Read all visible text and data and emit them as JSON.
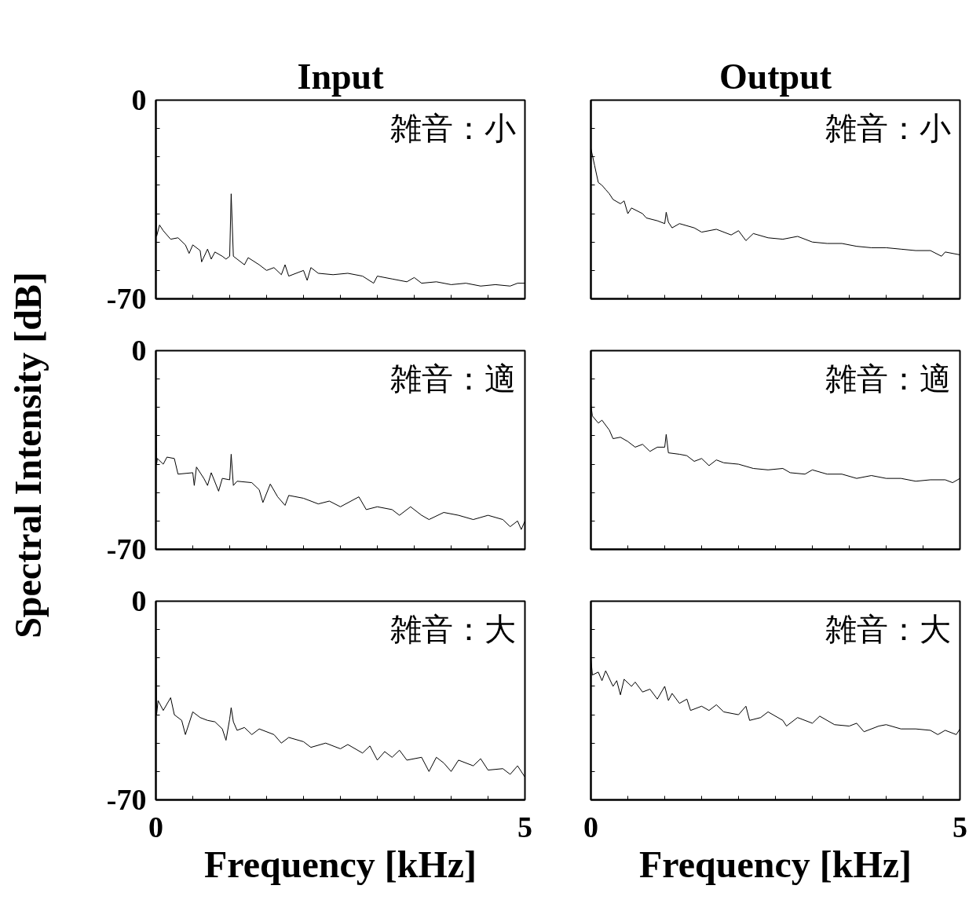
{
  "chart_data": [
    {
      "type": "line",
      "title": "Input",
      "annotations": [
        "雑音：小"
      ],
      "tick_labels": "y",
      "xlim": [
        0,
        5
      ],
      "ylim": [
        -70,
        0
      ],
      "xticks": [
        {
          "value": 0,
          "label": null
        },
        {
          "value": 0.5,
          "label": null
        },
        {
          "value": 1,
          "label": null
        },
        {
          "value": 1.5,
          "label": null
        },
        {
          "value": 2,
          "label": null
        },
        {
          "value": 2.5,
          "label": null
        },
        {
          "value": 3,
          "label": null
        },
        {
          "value": 3.5,
          "label": null
        },
        {
          "value": 4,
          "label": null
        },
        {
          "value": 4.5,
          "label": null
        },
        {
          "value": 5,
          "label": null
        }
      ],
      "yticks": [
        -70,
        {
          "value": -60,
          "label": null
        },
        {
          "value": -50,
          "label": null
        },
        {
          "value": -40,
          "label": null
        },
        {
          "value": -30,
          "label": null
        },
        {
          "value": -20,
          "label": null
        },
        {
          "value": -10,
          "label": null
        },
        0
      ],
      "series": [
        {
          "color": "#000000",
          "x": [
            0,
            0.01,
            0.05,
            0.1,
            0.2,
            0.3,
            0.4,
            0.45,
            0.5,
            0.6,
            0.62,
            0.7,
            0.75,
            0.8,
            0.9,
            0.95,
            1.0,
            1.02,
            1.05,
            1.1,
            1.2,
            1.25,
            1.4,
            1.5,
            1.6,
            1.7,
            1.75,
            1.8,
            2.0,
            2.05,
            2.1,
            2.2,
            2.4,
            2.6,
            2.8,
            2.95,
            3.0,
            3.2,
            3.4,
            3.5,
            3.6,
            3.8,
            4.0,
            4.2,
            4.4,
            4.6,
            4.8,
            4.9,
            5.0
          ],
          "values": [
            -10,
            -48,
            -44,
            -46,
            -49,
            -48.5,
            -51,
            -54,
            -51,
            -53,
            -57,
            -52.5,
            -56,
            -53.5,
            -55,
            -56,
            -55,
            -33,
            -55,
            -56,
            -58,
            -55.5,
            -58,
            -60,
            -59,
            -61.5,
            -58,
            -62,
            -60,
            -63.5,
            -59,
            -61,
            -61.5,
            -61,
            -62,
            -64.5,
            -62,
            -63,
            -64,
            -62.5,
            -64.5,
            -64,
            -65,
            -64.5,
            -65.5,
            -65,
            -65.5,
            -64.5,
            -64.5
          ]
        }
      ]
    },
    {
      "type": "line",
      "title": "Output",
      "annotations": [
        "雑音：小"
      ],
      "tick_labels": false,
      "xlim": [
        0,
        5
      ],
      "ylim": [
        -70,
        0
      ],
      "xticks": [
        {
          "value": 0,
          "label": null
        },
        {
          "value": 0.5,
          "label": null
        },
        {
          "value": 1,
          "label": null
        },
        {
          "value": 1.5,
          "label": null
        },
        {
          "value": 2,
          "label": null
        },
        {
          "value": 2.5,
          "label": null
        },
        {
          "value": 3,
          "label": null
        },
        {
          "value": 3.5,
          "label": null
        },
        {
          "value": 4,
          "label": null
        },
        {
          "value": 4.5,
          "label": null
        },
        {
          "value": 5,
          "label": null
        }
      ],
      "yticks": [
        {
          "value": -70,
          "label": null
        },
        {
          "value": -60,
          "label": null
        },
        {
          "value": -50,
          "label": null
        },
        {
          "value": -40,
          "label": null
        },
        {
          "value": -30,
          "label": null
        },
        {
          "value": -20,
          "label": null
        },
        {
          "value": -10,
          "label": null
        },
        {
          "value": 0,
          "label": null
        }
      ],
      "series": [
        {
          "color": "#000000",
          "x": [
            0,
            0.05,
            0.1,
            0.15,
            0.2,
            0.25,
            0.3,
            0.4,
            0.45,
            0.5,
            0.55,
            0.7,
            0.75,
            0.9,
            1.0,
            1.02,
            1.05,
            1.1,
            1.2,
            1.4,
            1.5,
            1.7,
            1.9,
            2.0,
            2.1,
            2.2,
            2.4,
            2.6,
            2.8,
            3.0,
            3.2,
            3.4,
            3.6,
            3.8,
            4.0,
            4.2,
            4.4,
            4.6,
            4.75,
            4.8,
            5.0
          ],
          "values": [
            -17,
            -23,
            -29,
            -30,
            -31.5,
            -33,
            -35,
            -36.5,
            -35.5,
            -40,
            -38,
            -40,
            -41.5,
            -42.5,
            -43.5,
            -39.5,
            -43,
            -45,
            -43.5,
            -45,
            -46.5,
            -45.5,
            -47.5,
            -46,
            -49.5,
            -47,
            -48.5,
            -49,
            -48,
            -50,
            -50.5,
            -50.5,
            -51.5,
            -52,
            -52,
            -52.5,
            -53,
            -53,
            -55,
            -53.5,
            -54.5
          ]
        }
      ]
    },
    {
      "type": "line",
      "ylabel": "Spectral Intensity [dB]",
      "annotations": [
        "雑音：適"
      ],
      "tick_labels": "y",
      "xlim": [
        0,
        5
      ],
      "ylim": [
        -70,
        0
      ],
      "xticks": [
        {
          "value": 0,
          "label": null
        },
        {
          "value": 0.5,
          "label": null
        },
        {
          "value": 1,
          "label": null
        },
        {
          "value": 1.5,
          "label": null
        },
        {
          "value": 2,
          "label": null
        },
        {
          "value": 2.5,
          "label": null
        },
        {
          "value": 3,
          "label": null
        },
        {
          "value": 3.5,
          "label": null
        },
        {
          "value": 4,
          "label": null
        },
        {
          "value": 4.5,
          "label": null
        },
        {
          "value": 5,
          "label": null
        }
      ],
      "yticks": [
        -70,
        {
          "value": -60,
          "label": null
        },
        {
          "value": -50,
          "label": null
        },
        {
          "value": -40,
          "label": null
        },
        {
          "value": -30,
          "label": null
        },
        {
          "value": -20,
          "label": null
        },
        {
          "value": -10,
          "label": null
        },
        0
      ],
      "series": [
        {
          "color": "#000000",
          "x": [
            0,
            0.01,
            0.02,
            0.1,
            0.15,
            0.25,
            0.3,
            0.5,
            0.52,
            0.55,
            0.65,
            0.7,
            0.75,
            0.85,
            0.9,
            1.0,
            1.02,
            1.05,
            1.1,
            1.3,
            1.4,
            1.45,
            1.55,
            1.65,
            1.75,
            1.8,
            2.0,
            2.2,
            2.35,
            2.5,
            2.75,
            2.85,
            3.0,
            3.2,
            3.3,
            3.45,
            3.6,
            3.7,
            3.9,
            4.1,
            4.3,
            4.5,
            4.7,
            4.8,
            4.9,
            4.95,
            5.0
          ],
          "values": [
            -10,
            -40,
            -38,
            -40,
            -37.5,
            -38,
            -43.5,
            -43,
            -47.5,
            -41,
            -45,
            -47.5,
            -43,
            -49.5,
            -45,
            -45.5,
            -36.5,
            -47.5,
            -46,
            -46.5,
            -49,
            -53.5,
            -47,
            -51.5,
            -54.5,
            -51,
            -52,
            -54,
            -53,
            -55,
            -51.5,
            -56,
            -55,
            -56,
            -58,
            -55,
            -58,
            -59.5,
            -57,
            -58,
            -59.5,
            -58,
            -59.5,
            -62,
            -60,
            -63,
            -60
          ]
        }
      ]
    },
    {
      "type": "line",
      "annotations": [
        "雑音：適"
      ],
      "tick_labels": false,
      "xlim": [
        0,
        5
      ],
      "ylim": [
        -70,
        0
      ],
      "xticks": [
        {
          "value": 0,
          "label": null
        },
        {
          "value": 0.5,
          "label": null
        },
        {
          "value": 1,
          "label": null
        },
        {
          "value": 1.5,
          "label": null
        },
        {
          "value": 2,
          "label": null
        },
        {
          "value": 2.5,
          "label": null
        },
        {
          "value": 3,
          "label": null
        },
        {
          "value": 3.5,
          "label": null
        },
        {
          "value": 4,
          "label": null
        },
        {
          "value": 4.5,
          "label": null
        },
        {
          "value": 5,
          "label": null
        }
      ],
      "yticks": [
        {
          "value": -70,
          "label": null
        },
        {
          "value": -60,
          "label": null
        },
        {
          "value": -50,
          "label": null
        },
        {
          "value": -40,
          "label": null
        },
        {
          "value": -30,
          "label": null
        },
        {
          "value": -20,
          "label": null
        },
        {
          "value": -10,
          "label": null
        },
        {
          "value": 0,
          "label": null
        }
      ],
      "series": [
        {
          "color": "#000000",
          "x": [
            0,
            0.02,
            0.1,
            0.15,
            0.25,
            0.3,
            0.4,
            0.5,
            0.6,
            0.7,
            0.8,
            0.9,
            1.0,
            1.02,
            1.05,
            1.2,
            1.3,
            1.4,
            1.5,
            1.6,
            1.7,
            1.8,
            2.0,
            2.2,
            2.4,
            2.6,
            2.7,
            2.9,
            3.0,
            3.2,
            3.4,
            3.6,
            3.8,
            4.0,
            4.2,
            4.4,
            4.6,
            4.8,
            4.9,
            5.0
          ],
          "values": [
            -19,
            -23,
            -25.5,
            -24.5,
            -28,
            -31,
            -30.5,
            -32,
            -34,
            -33,
            -35.5,
            -34,
            -34,
            -29.5,
            -36,
            -36.5,
            -37,
            -39,
            -38,
            -40.5,
            -38.5,
            -39.5,
            -40,
            -41.5,
            -42,
            -41.5,
            -43,
            -43.5,
            -42,
            -43.5,
            -43.5,
            -45,
            -44,
            -45,
            -45,
            -46,
            -45.5,
            -45.5,
            -46.5,
            -45
          ]
        }
      ]
    },
    {
      "type": "line",
      "xlabel": "Frequency [kHz]",
      "annotations": [
        "雑音：大"
      ],
      "xlim": [
        0,
        5
      ],
      "ylim": [
        -70,
        0
      ],
      "xticks": [
        0,
        {
          "value": 0.5,
          "label": null
        },
        {
          "value": 1,
          "label": null
        },
        {
          "value": 1.5,
          "label": null
        },
        {
          "value": 2,
          "label": null
        },
        {
          "value": 2.5,
          "label": null
        },
        {
          "value": 3,
          "label": null
        },
        {
          "value": 3.5,
          "label": null
        },
        {
          "value": 4,
          "label": null
        },
        {
          "value": 4.5,
          "label": null
        },
        5
      ],
      "yticks": [
        -70,
        {
          "value": -60,
          "label": null
        },
        {
          "value": -50,
          "label": null
        },
        {
          "value": -40,
          "label": null
        },
        {
          "value": -30,
          "label": null
        },
        {
          "value": -20,
          "label": null
        },
        {
          "value": -10,
          "label": null
        },
        0
      ],
      "series": [
        {
          "color": "#000000",
          "x": [
            0,
            0.01,
            0.03,
            0.1,
            0.2,
            0.25,
            0.35,
            0.4,
            0.5,
            0.6,
            0.7,
            0.8,
            0.9,
            0.95,
            1.0,
            1.02,
            1.05,
            1.1,
            1.2,
            1.3,
            1.4,
            1.6,
            1.7,
            1.8,
            2.0,
            2.1,
            2.3,
            2.5,
            2.6,
            2.8,
            2.9,
            3.0,
            3.1,
            3.2,
            3.3,
            3.4,
            3.6,
            3.7,
            3.8,
            3.9,
            4.0,
            4.1,
            4.3,
            4.4,
            4.5,
            4.7,
            4.8,
            4.9,
            5.0
          ],
          "values": [
            -10,
            -40,
            -35,
            -38.5,
            -34,
            -40,
            -42,
            -47,
            -39,
            -41,
            -42,
            -42.5,
            -45,
            -49,
            -41.5,
            -37.5,
            -42.5,
            -45.5,
            -44.5,
            -47,
            -45,
            -47,
            -50,
            -48,
            -49.5,
            -51.5,
            -50,
            -52,
            -50.5,
            -53.5,
            -51,
            -56,
            -53,
            -55,
            -52.5,
            -56,
            -55,
            -60,
            -55,
            -57,
            -60,
            -56,
            -58,
            -55.5,
            -59.5,
            -59,
            -61,
            -58,
            -62
          ]
        }
      ]
    },
    {
      "type": "line",
      "xlabel": "Frequency [kHz]",
      "annotations": [
        "雑音：大"
      ],
      "tick_labels": "x",
      "xlim": [
        0,
        5
      ],
      "ylim": [
        -70,
        0
      ],
      "xticks": [
        0,
        {
          "value": 0.5,
          "label": null
        },
        {
          "value": 1,
          "label": null
        },
        {
          "value": 1.5,
          "label": null
        },
        {
          "value": 2,
          "label": null
        },
        {
          "value": 2.5,
          "label": null
        },
        {
          "value": 3,
          "label": null
        },
        {
          "value": 3.5,
          "label": null
        },
        {
          "value": 4,
          "label": null
        },
        {
          "value": 4.5,
          "label": null
        },
        5
      ],
      "yticks": [
        {
          "value": -70,
          "label": null
        },
        {
          "value": -60,
          "label": null
        },
        {
          "value": -50,
          "label": null
        },
        {
          "value": -40,
          "label": null
        },
        {
          "value": -30,
          "label": null
        },
        {
          "value": -20,
          "label": null
        },
        {
          "value": -10,
          "label": null
        },
        {
          "value": 0,
          "label": null
        }
      ],
      "series": [
        {
          "color": "#000000",
          "x": [
            0,
            0.02,
            0.1,
            0.15,
            0.2,
            0.3,
            0.35,
            0.4,
            0.45,
            0.55,
            0.6,
            0.7,
            0.8,
            0.9,
            1.0,
            1.05,
            1.1,
            1.2,
            1.3,
            1.35,
            1.5,
            1.6,
            1.7,
            1.8,
            2.0,
            2.1,
            2.15,
            2.3,
            2.4,
            2.6,
            2.65,
            2.8,
            3.0,
            3.1,
            3.3,
            3.5,
            3.6,
            3.7,
            3.9,
            4.0,
            4.2,
            4.4,
            4.6,
            4.7,
            4.8,
            4.95,
            5.0
          ],
          "values": [
            -20,
            -26,
            -25,
            -28,
            -24.5,
            -30,
            -28,
            -33,
            -27.5,
            -30,
            -28.5,
            -32,
            -31,
            -34.5,
            -30,
            -35,
            -32.5,
            -36,
            -34.5,
            -38.5,
            -37,
            -38.5,
            -36.5,
            -39,
            -40,
            -37,
            -42,
            -41,
            -39,
            -42,
            -44,
            -41,
            -43,
            -40.5,
            -43.5,
            -44,
            -43,
            -46,
            -44,
            -43.5,
            -45,
            -45,
            -45.5,
            -47,
            -45.5,
            -47,
            -45
          ]
        }
      ]
    }
  ]
}
